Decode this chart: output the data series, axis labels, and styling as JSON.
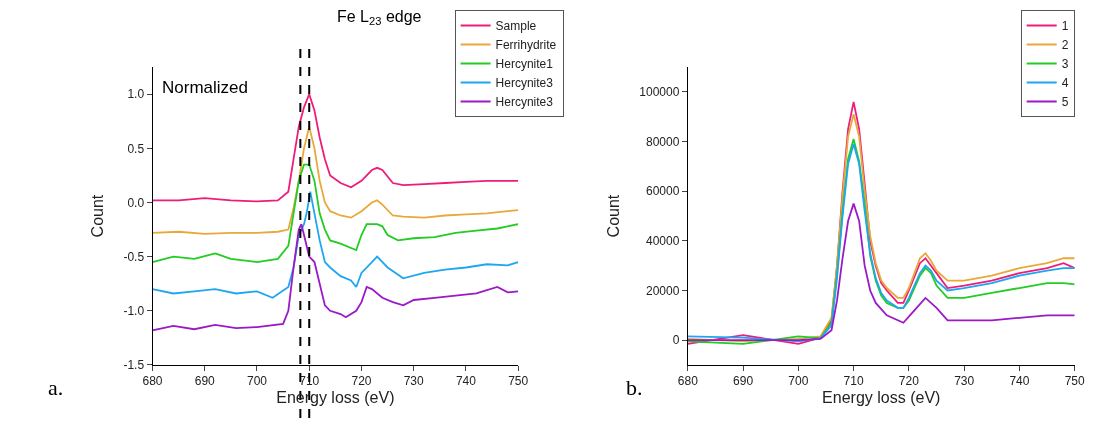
{
  "chart_data": [
    {
      "type": "line",
      "title": "Fe L$_{23}$ edge",
      "xlabel": "Energy loss (eV)",
      "ylabel": "Count",
      "annotations": [
        "Normalized",
        "a."
      ],
      "xlim": [
        680,
        750
      ],
      "xticks": [
        680,
        690,
        700,
        710,
        720,
        730,
        740,
        750
      ],
      "ylim": [
        -1.5,
        1.25
      ],
      "yticks": [
        -1.5,
        {
          "value": -1.0,
          "label": "-1.0"
        },
        -0.5,
        {
          "value": 0.0,
          "label": "0.0"
        },
        0.5,
        {
          "value": 1.0,
          "label": "1.0"
        }
      ],
      "legend": "top right",
      "line_style": "solid",
      "marker": "none",
      "ref_lines": [
        {
          "axis": "x",
          "value": 708.3,
          "color": "#000000",
          "line_style": "dashed"
        },
        {
          "axis": "x",
          "value": 710,
          "color": "#000000",
          "line_style": "dashed"
        }
      ],
      "series": [
        {
          "name": "Sample",
          "color": "#ee1d7a",
          "x": [
            680,
            685,
            690,
            695,
            700,
            704,
            706,
            707,
            708,
            709,
            710,
            711,
            712,
            713,
            714,
            716,
            718,
            720,
            722,
            723,
            724,
            726,
            728,
            732,
            736,
            740,
            744,
            748,
            750
          ],
          "values": [
            0.02,
            0.02,
            0.04,
            0.02,
            0.01,
            0.02,
            0.1,
            0.4,
            0.7,
            0.88,
            1.0,
            0.85,
            0.6,
            0.4,
            0.25,
            0.18,
            0.14,
            0.2,
            0.3,
            0.32,
            0.3,
            0.18,
            0.16,
            0.17,
            0.18,
            0.19,
            0.2,
            0.2,
            0.2
          ]
        },
        {
          "name": "Ferrihydrite",
          "color": "#e8a93a",
          "x": [
            680,
            685,
            690,
            695,
            700,
            704,
            706,
            707,
            708,
            709,
            710,
            711,
            712,
            713,
            714,
            716,
            718,
            720,
            722,
            723,
            724,
            726,
            728,
            732,
            736,
            740,
            744,
            748,
            750
          ],
          "values": [
            -0.28,
            -0.27,
            -0.29,
            -0.28,
            -0.28,
            -0.27,
            -0.25,
            -0.05,
            0.2,
            0.5,
            0.7,
            0.5,
            0.2,
            0.0,
            -0.08,
            -0.12,
            -0.14,
            -0.08,
            0.0,
            0.02,
            -0.02,
            -0.12,
            -0.13,
            -0.14,
            -0.12,
            -0.11,
            -0.1,
            -0.08,
            -0.07
          ]
        },
        {
          "name": "Hercynite1",
          "color": "#22cc22",
          "x": [
            680,
            684,
            688,
            692,
            695,
            700,
            704,
            706,
            707,
            708,
            709,
            710,
            711,
            712,
            713,
            714,
            716,
            718,
            719,
            720,
            721,
            723,
            724,
            725,
            727,
            730,
            734,
            738,
            742,
            746,
            750
          ],
          "values": [
            -0.55,
            -0.5,
            -0.52,
            -0.47,
            -0.52,
            -0.55,
            -0.52,
            -0.4,
            -0.1,
            0.2,
            0.35,
            0.35,
            0.2,
            -0.1,
            -0.25,
            -0.35,
            -0.38,
            -0.42,
            -0.44,
            -0.3,
            -0.2,
            -0.2,
            -0.22,
            -0.3,
            -0.35,
            -0.33,
            -0.32,
            -0.28,
            -0.26,
            -0.24,
            -0.2
          ]
        },
        {
          "name": "Hercynite3",
          "color": "#1ea7f0",
          "x": [
            680,
            684,
            688,
            692,
            696,
            700,
            703,
            706,
            707,
            708,
            709,
            709.5,
            710.2,
            711,
            712,
            713,
            714,
            716,
            718,
            719,
            720,
            722,
            723,
            725,
            728,
            732,
            736,
            740,
            744,
            748,
            750
          ],
          "values": [
            -0.8,
            -0.84,
            -0.82,
            -0.8,
            -0.84,
            -0.82,
            -0.88,
            -0.78,
            -0.6,
            -0.3,
            -0.2,
            -0.1,
            0.1,
            -0.1,
            -0.35,
            -0.55,
            -0.6,
            -0.68,
            -0.72,
            -0.78,
            -0.65,
            -0.55,
            -0.5,
            -0.6,
            -0.7,
            -0.65,
            -0.62,
            -0.6,
            -0.57,
            -0.58,
            -0.55
          ]
        },
        {
          "name": "Hercynite3",
          "color": "#9b19c7",
          "x": [
            680,
            684,
            688,
            692,
            696,
            700,
            705,
            706,
            707,
            708,
            708.5,
            709,
            710,
            711,
            712,
            713,
            714,
            716,
            717,
            719,
            720,
            721,
            722,
            724,
            726,
            728,
            730,
            734,
            738,
            742,
            746,
            748,
            750
          ],
          "values": [
            -1.18,
            -1.14,
            -1.17,
            -1.13,
            -1.16,
            -1.15,
            -1.12,
            -1.0,
            -0.6,
            -0.25,
            -0.2,
            -0.3,
            -0.5,
            -0.55,
            -0.75,
            -0.95,
            -1.0,
            -1.03,
            -1.06,
            -1.0,
            -0.92,
            -0.78,
            -0.8,
            -0.88,
            -0.92,
            -0.95,
            -0.9,
            -0.88,
            -0.86,
            -0.84,
            -0.78,
            -0.83,
            -0.82
          ]
        }
      ]
    },
    {
      "type": "line",
      "xlabel": "Energy loss (eV)",
      "ylabel": "Count",
      "annotations": [
        "b."
      ],
      "xlim": [
        680,
        750
      ],
      "xticks": [
        680,
        690,
        700,
        710,
        720,
        730,
        740,
        750
      ],
      "ylim": [
        -10000,
        110000
      ],
      "yticks": [
        0,
        20000,
        40000,
        60000,
        80000,
        100000
      ],
      "legend": "top right",
      "line_style": "solid",
      "marker": "none",
      "series": [
        {
          "name": "1",
          "color": "#ee1d7a",
          "x": [
            680,
            690,
            700,
            704,
            706,
            707,
            708,
            709,
            710,
            711,
            712,
            713,
            714,
            715,
            716,
            718,
            719,
            720,
            722,
            723,
            724,
            725,
            727,
            730,
            735,
            740,
            745,
            748,
            750
          ],
          "values": [
            -1500,
            2000,
            -1500,
            1000,
            8000,
            30000,
            60000,
            85000,
            96000,
            85000,
            63000,
            40000,
            30000,
            23000,
            20000,
            15000,
            15000,
            20000,
            31000,
            33000,
            30000,
            27000,
            21000,
            22000,
            24000,
            27000,
            29000,
            31000,
            29000
          ]
        },
        {
          "name": "2",
          "color": "#e8a93a",
          "x": [
            680,
            690,
            700,
            704,
            706,
            707,
            708,
            709,
            710,
            711,
            712,
            713,
            714,
            715,
            716,
            718,
            719,
            720,
            722,
            723,
            724,
            725,
            727,
            730,
            735,
            740,
            745,
            748,
            750
          ],
          "values": [
            500,
            -500,
            500,
            1500,
            9000,
            30000,
            58000,
            82000,
            91000,
            82000,
            60000,
            42000,
            31000,
            24000,
            21000,
            17000,
            17000,
            21000,
            33000,
            35000,
            32000,
            28000,
            24000,
            24000,
            26000,
            29000,
            31000,
            33000,
            33000
          ]
        },
        {
          "name": "3",
          "color": "#22cc22",
          "x": [
            680,
            690,
            700,
            704,
            706,
            707,
            708,
            709,
            710,
            711,
            712,
            713,
            714,
            715,
            716,
            718,
            719,
            720,
            722,
            723,
            724,
            725,
            727,
            730,
            735,
            740,
            745,
            748,
            750
          ],
          "values": [
            -500,
            -1500,
            1500,
            800,
            7000,
            27000,
            52000,
            73000,
            81000,
            72000,
            55000,
            34000,
            24000,
            18000,
            15000,
            13000,
            13000,
            16000,
            26000,
            29000,
            27000,
            22000,
            17000,
            17000,
            19000,
            21000,
            23000,
            23000,
            22500
          ]
        },
        {
          "name": "4",
          "color": "#1ea7f0",
          "x": [
            680,
            690,
            700,
            704,
            706,
            707,
            708,
            709,
            710,
            711,
            712,
            713,
            714,
            715,
            716,
            718,
            719,
            720,
            722,
            723,
            724,
            725,
            727,
            730,
            735,
            740,
            745,
            748,
            750
          ],
          "values": [
            1500,
            1000,
            -500,
            800,
            6000,
            25000,
            50000,
            71000,
            79000,
            71000,
            52000,
            35000,
            25000,
            19000,
            16000,
            13000,
            13000,
            17000,
            27000,
            30000,
            28000,
            24000,
            20000,
            21000,
            23000,
            26000,
            28000,
            29000,
            29000
          ]
        },
        {
          "name": "5",
          "color": "#9b19c7",
          "x": [
            680,
            690,
            700,
            704,
            706,
            707,
            708,
            709,
            710,
            711,
            712,
            713,
            714,
            716,
            719,
            721,
            723,
            725,
            727,
            730,
            735,
            740,
            745,
            750
          ],
          "values": [
            0,
            0,
            0,
            500,
            4000,
            16000,
            33000,
            48000,
            55000,
            48000,
            30000,
            20000,
            15000,
            10000,
            7000,
            12000,
            17000,
            13000,
            8000,
            8000,
            8000,
            9000,
            10000,
            10000
          ]
        }
      ]
    }
  ]
}
